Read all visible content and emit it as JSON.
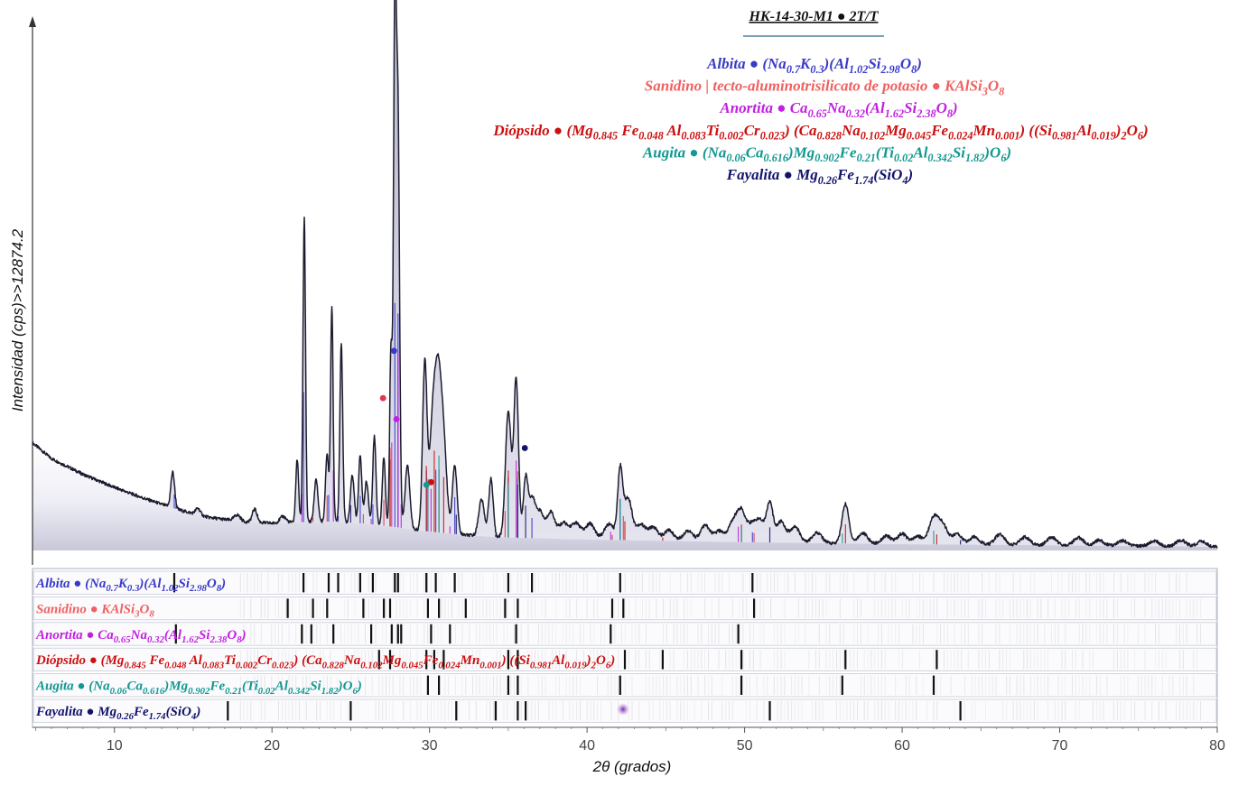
{
  "chart_data": {
    "type": "line",
    "title": "HK-14-30-M1 ● 2T/T",
    "xlabel": "2θ (grados)",
    "ylabel": "Intensidad (cps)>>12874.2",
    "xlim": [
      4.8,
      80
    ],
    "x_ticks": [
      "10",
      "20",
      "30",
      "40",
      "50",
      "60",
      "70",
      "80"
    ],
    "grid": false,
    "legend_position": "top-center",
    "phases": [
      {
        "name": "Albita",
        "formula_parts": [
          [
            "(Na",
            ""
          ],
          [
            "0.7",
            "sub"
          ],
          [
            "K",
            ""
          ],
          [
            "0.3",
            "sub"
          ],
          [
            ")(Al",
            ""
          ],
          [
            "1.02",
            "sub"
          ],
          [
            "Si",
            ""
          ],
          [
            "2.98",
            "sub"
          ],
          [
            "O",
            ""
          ],
          [
            "8",
            "sub"
          ],
          [
            ")",
            ""
          ]
        ],
        "color": "#3a3ac8",
        "marker_color": "#3a3ac8"
      },
      {
        "name": "Sanidino | tecto-aluminotrisilicato de potasio",
        "strip_name": "Sanidino",
        "formula_parts": [
          [
            "KAlSi",
            ""
          ],
          [
            "3",
            "sub"
          ],
          [
            "O",
            ""
          ],
          [
            "8",
            "sub"
          ]
        ],
        "color": "#f06060",
        "marker_color": "#e03a4a"
      },
      {
        "name": "Anortita",
        "formula_parts": [
          [
            "Ca",
            ""
          ],
          [
            "0.65",
            "sub"
          ],
          [
            "Na",
            ""
          ],
          [
            "0.32",
            "sub"
          ],
          [
            "(Al",
            ""
          ],
          [
            "1.62",
            "sub"
          ],
          [
            "Si",
            ""
          ],
          [
            "2.38",
            "sub"
          ],
          [
            "O",
            ""
          ],
          [
            "8",
            "sub"
          ],
          [
            ")",
            ""
          ]
        ],
        "color": "#c020e0",
        "marker_color": "#c020e0"
      },
      {
        "name": "Diópsido",
        "formula_parts": [
          [
            "(Mg",
            ""
          ],
          [
            "0.845",
            "sub"
          ],
          [
            " Fe",
            ""
          ],
          [
            "0.048",
            "sub"
          ],
          [
            " Al",
            ""
          ],
          [
            "0.083",
            "sub"
          ],
          [
            "Ti",
            ""
          ],
          [
            "0.002",
            "sub"
          ],
          [
            "Cr",
            ""
          ],
          [
            "0.023",
            "sub"
          ],
          [
            ") (Ca",
            ""
          ],
          [
            "0.828",
            "sub"
          ],
          [
            "Na",
            ""
          ],
          [
            "0.102",
            "sub"
          ],
          [
            "Mg",
            ""
          ],
          [
            "0.045",
            "sub"
          ],
          [
            "Fe",
            ""
          ],
          [
            "0.024",
            "sub"
          ],
          [
            "Mn",
            ""
          ],
          [
            "0.001",
            "sub"
          ],
          [
            ") ((Si",
            ""
          ],
          [
            "0.981",
            "sub"
          ],
          [
            "Al",
            ""
          ],
          [
            "0.019",
            "sub"
          ],
          [
            ")",
            ""
          ],
          [
            "2",
            "sub"
          ],
          [
            "O",
            ""
          ],
          [
            "6",
            "sub"
          ],
          [
            ")",
            ""
          ]
        ],
        "color": "#cc1010",
        "marker_color": "#cc1010"
      },
      {
        "name": "Augita",
        "formula_parts": [
          [
            "(Na",
            ""
          ],
          [
            "0.06",
            "sub"
          ],
          [
            "Ca",
            ""
          ],
          [
            "0.616",
            "sub"
          ],
          [
            ")Mg",
            ""
          ],
          [
            "0.902",
            "sub"
          ],
          [
            "Fe",
            ""
          ],
          [
            "0.21",
            "sub"
          ],
          [
            "(Ti",
            ""
          ],
          [
            "0.02",
            "sub"
          ],
          [
            "Al",
            ""
          ],
          [
            "0.342",
            "sub"
          ],
          [
            "Si",
            ""
          ],
          [
            "1.82",
            "sub"
          ],
          [
            ")O",
            ""
          ],
          [
            "6",
            "sub"
          ],
          [
            ")",
            ""
          ]
        ],
        "color": "#129890",
        "marker_color": "#129890"
      },
      {
        "name": "Fayalita",
        "formula_parts": [
          [
            "Mg",
            ""
          ],
          [
            "0.26",
            "sub"
          ],
          [
            "Fe",
            ""
          ],
          [
            "1.74",
            "sub"
          ],
          [
            "(SiO",
            ""
          ],
          [
            "4",
            "sub"
          ],
          [
            ")",
            ""
          ]
        ],
        "color": "#12126a",
        "marker_color": "#12126a"
      }
    ],
    "pattern": {
      "background": [
        [
          4.8,
          0.205
        ],
        [
          6,
          0.175
        ],
        [
          8,
          0.145
        ],
        [
          10,
          0.12
        ],
        [
          12,
          0.098
        ],
        [
          14,
          0.078
        ],
        [
          16,
          0.063
        ],
        [
          18,
          0.055
        ],
        [
          20,
          0.052
        ],
        [
          22,
          0.054
        ],
        [
          24,
          0.055
        ],
        [
          26,
          0.051
        ],
        [
          28,
          0.044
        ],
        [
          30,
          0.036
        ],
        [
          32,
          0.03
        ],
        [
          34,
          0.026
        ],
        [
          36,
          0.024
        ],
        [
          40,
          0.021
        ],
        [
          44,
          0.019
        ],
        [
          50,
          0.016
        ],
        [
          60,
          0.012
        ],
        [
          70,
          0.01
        ],
        [
          80,
          0.007
        ]
      ],
      "peaks": [
        [
          13.7,
          0.068,
          0.12
        ],
        [
          15.3,
          0.012,
          0.15
        ],
        [
          17.8,
          0.012,
          0.2
        ],
        [
          18.9,
          0.025,
          0.15
        ],
        [
          20.7,
          0.012,
          0.2
        ],
        [
          21.6,
          0.12,
          0.09
        ],
        [
          22.05,
          0.58,
          0.08
        ],
        [
          22.8,
          0.08,
          0.12
        ],
        [
          23.5,
          0.13,
          0.1
        ],
        [
          23.8,
          0.41,
          0.08
        ],
        [
          24.4,
          0.34,
          0.09
        ],
        [
          25.1,
          0.09,
          0.12
        ],
        [
          25.6,
          0.13,
          0.1
        ],
        [
          26.0,
          0.08,
          0.12
        ],
        [
          26.5,
          0.17,
          0.1
        ],
        [
          27.1,
          0.13,
          0.1
        ],
        [
          27.55,
          0.33,
          0.08
        ],
        [
          27.8,
          0.96,
          0.09
        ],
        [
          28.0,
          0.76,
          0.1
        ],
        [
          28.6,
          0.12,
          0.15
        ],
        [
          29.7,
          0.32,
          0.14
        ],
        [
          30.2,
          0.2,
          0.2
        ],
        [
          30.55,
          0.26,
          0.2
        ],
        [
          30.9,
          0.16,
          0.2
        ],
        [
          31.6,
          0.13,
          0.15
        ],
        [
          33.3,
          0.07,
          0.18
        ],
        [
          33.9,
          0.11,
          0.14
        ],
        [
          35.0,
          0.24,
          0.18
        ],
        [
          35.5,
          0.3,
          0.15
        ],
        [
          36.1,
          0.11,
          0.15
        ],
        [
          36.5,
          0.07,
          0.2
        ],
        [
          37.0,
          0.05,
          0.25
        ],
        [
          37.7,
          0.05,
          0.25
        ],
        [
          38.5,
          0.03,
          0.3
        ],
        [
          39.3,
          0.03,
          0.3
        ],
        [
          40.2,
          0.03,
          0.3
        ],
        [
          41.4,
          0.03,
          0.3
        ],
        [
          42.1,
          0.13,
          0.16
        ],
        [
          42.6,
          0.08,
          0.25
        ],
        [
          43.4,
          0.03,
          0.3
        ],
        [
          44.2,
          0.025,
          0.3
        ],
        [
          45.2,
          0.02,
          0.3
        ],
        [
          46.4,
          0.02,
          0.3
        ],
        [
          47.5,
          0.03,
          0.3
        ],
        [
          48.4,
          0.02,
          0.3
        ],
        [
          49.3,
          0.04,
          0.3
        ],
        [
          49.8,
          0.05,
          0.25
        ],
        [
          50.4,
          0.03,
          0.3
        ],
        [
          51.0,
          0.04,
          0.3
        ],
        [
          51.6,
          0.07,
          0.2
        ],
        [
          52.3,
          0.04,
          0.3
        ],
        [
          53.2,
          0.03,
          0.3
        ],
        [
          54.6,
          0.02,
          0.3
        ],
        [
          56.4,
          0.075,
          0.22
        ],
        [
          57.5,
          0.02,
          0.3
        ],
        [
          59.0,
          0.015,
          0.3
        ],
        [
          60.0,
          0.02,
          0.3
        ],
        [
          61.0,
          0.015,
          0.3
        ],
        [
          62.0,
          0.05,
          0.3
        ],
        [
          62.6,
          0.035,
          0.3
        ],
        [
          63.5,
          0.02,
          0.3
        ],
        [
          64.6,
          0.015,
          0.3
        ],
        [
          66.2,
          0.02,
          0.3
        ],
        [
          67.8,
          0.015,
          0.3
        ],
        [
          69.5,
          0.015,
          0.3
        ],
        [
          71.2,
          0.015,
          0.3
        ],
        [
          72.5,
          0.01,
          0.3
        ],
        [
          74.0,
          0.01,
          0.3
        ],
        [
          76.0,
          0.01,
          0.3
        ],
        [
          77.7,
          0.012,
          0.3
        ],
        [
          79.0,
          0.01,
          0.3
        ]
      ]
    },
    "phase_markers": [
      {
        "phase": "Albita",
        "x": 27.75,
        "y": 0.38
      },
      {
        "phase": "Sanidino | tecto-aluminotrisilicato de potasio",
        "x": 27.05,
        "y": 0.29
      },
      {
        "phase": "Anortita",
        "x": 27.9,
        "y": 0.25
      },
      {
        "phase": "Diópsido",
        "x": 30.1,
        "y": 0.13
      },
      {
        "phase": "Augita",
        "x": 29.8,
        "y": 0.125
      },
      {
        "phase": "Fayalita",
        "x": 36.05,
        "y": 0.195
      }
    ],
    "reference_lines": {
      "Albita": [
        13.8,
        22.0,
        23.6,
        24.2,
        25.6,
        26.4,
        27.8,
        28.0,
        29.8,
        30.4,
        31.6,
        35.0,
        36.5,
        42.1,
        50.5
      ],
      "Sanidino | tecto-aluminotrisilicato de potasio": [
        21.0,
        22.6,
        23.5,
        25.8,
        27.1,
        27.5,
        29.9,
        30.6,
        32.3,
        34.8,
        35.6,
        41.6,
        42.3,
        50.6
      ],
      "Anortita": [
        13.9,
        21.9,
        22.5,
        23.9,
        26.3,
        27.6,
        28.0,
        28.2,
        30.1,
        31.3,
        35.5,
        41.5,
        49.6
      ],
      "Diópsido": [
        26.8,
        27.5,
        29.8,
        30.3,
        30.9,
        35.0,
        35.6,
        42.4,
        44.8,
        49.8,
        56.4,
        62.2
      ],
      "Augita": [
        29.9,
        30.6,
        35.0,
        35.6,
        42.1,
        49.8,
        56.2,
        62.0
      ],
      "Fayalita": [
        17.2,
        25.0,
        31.7,
        34.2,
        35.6,
        36.1,
        51.6,
        63.7
      ]
    }
  }
}
